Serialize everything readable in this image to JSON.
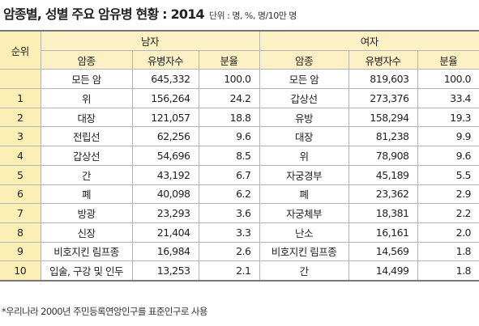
{
  "header": {
    "title": "암종별, 성별 주요 암유병 현황 : 2014",
    "unit": "단위 : 명, %, 명/10만 명"
  },
  "table": {
    "rank_header": "순위",
    "groups": [
      "남자",
      "여자"
    ],
    "columns": [
      "암종",
      "유병자수",
      "분율"
    ],
    "rows": [
      {
        "male": [
          "모든 암",
          "645,332",
          "100.0"
        ],
        "female": [
          "모든 암",
          "819,603",
          "100.0"
        ]
      },
      {
        "rank": "1",
        "male": [
          "위",
          "156,264",
          "24.2"
        ],
        "female": [
          "갑상선",
          "273,376",
          "33.4"
        ]
      },
      {
        "rank": "2",
        "male": [
          "대장",
          "121,057",
          "18.8"
        ],
        "female": [
          "유방",
          "158,294",
          "19.3"
        ]
      },
      {
        "rank": "3",
        "male": [
          "전립선",
          "62,256",
          "9.6"
        ],
        "female": [
          "대장",
          "81,238",
          "9.9"
        ]
      },
      {
        "rank": "4",
        "male": [
          "갑상선",
          "54,696",
          "8.5"
        ],
        "female": [
          "위",
          "78,908",
          "9.6"
        ]
      },
      {
        "rank": "5",
        "male": [
          "간",
          "43,192",
          "6.7"
        ],
        "female": [
          "자궁경부",
          "45,189",
          "5.5"
        ]
      },
      {
        "rank": "6",
        "male": [
          "폐",
          "40,098",
          "6.2"
        ],
        "female": [
          "폐",
          "23,362",
          "2.9"
        ]
      },
      {
        "rank": "7",
        "male": [
          "방광",
          "23,293",
          "3.6"
        ],
        "female": [
          "자궁체부",
          "18,381",
          "2.2"
        ]
      },
      {
        "rank": "8",
        "male": [
          "신장",
          "21,404",
          "3.3"
        ],
        "female": [
          "난소",
          "16,161",
          "2.0"
        ]
      },
      {
        "rank": "9",
        "male": [
          "비호지킨 림프종",
          "16,984",
          "2.6"
        ],
        "female": [
          "비호지킨 림프종",
          "14,569",
          "1.8"
        ]
      },
      {
        "rank": "10",
        "male": [
          "입술, 구강 및 인두",
          "13,253",
          "2.1"
        ],
        "female": [
          "간",
          "14,499",
          "1.8"
        ]
      }
    ]
  },
  "footnote": "*우리나라 2000년 주민등록연앙인구를 표준인구로 사용"
}
